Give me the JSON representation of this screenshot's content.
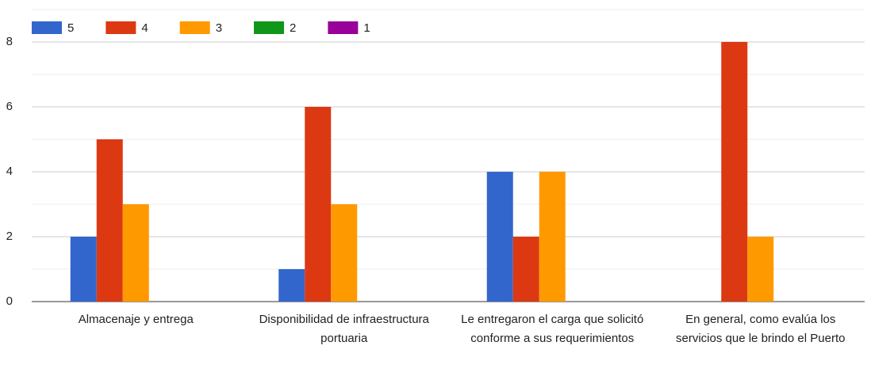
{
  "chart_data": {
    "type": "bar",
    "categories": [
      "Almacenaje y entrega",
      "Disponibilidad de infraestructura portuaria",
      "Le entregaron el carga que solicitó conforme a sus requerimientos",
      "En general, como evalúa los servicios que le brindo el Puerto"
    ],
    "series": [
      {
        "name": "5",
        "color": "#3366cc",
        "values": [
          2,
          1,
          4,
          0
        ]
      },
      {
        "name": "4",
        "color": "#dc3912",
        "values": [
          5,
          6,
          2,
          8
        ]
      },
      {
        "name": "3",
        "color": "#ff9900",
        "values": [
          3,
          3,
          4,
          2
        ]
      },
      {
        "name": "2",
        "color": "#109618",
        "values": [
          0,
          0,
          0,
          0
        ]
      },
      {
        "name": "1",
        "color": "#990099",
        "values": [
          0,
          0,
          0,
          0
        ]
      }
    ],
    "ylim": [
      0,
      9
    ],
    "yticks": [
      0,
      2,
      4,
      6,
      8
    ],
    "minor_yticks": [
      1,
      3,
      5,
      7,
      9
    ],
    "grid": true,
    "legend": "top"
  }
}
